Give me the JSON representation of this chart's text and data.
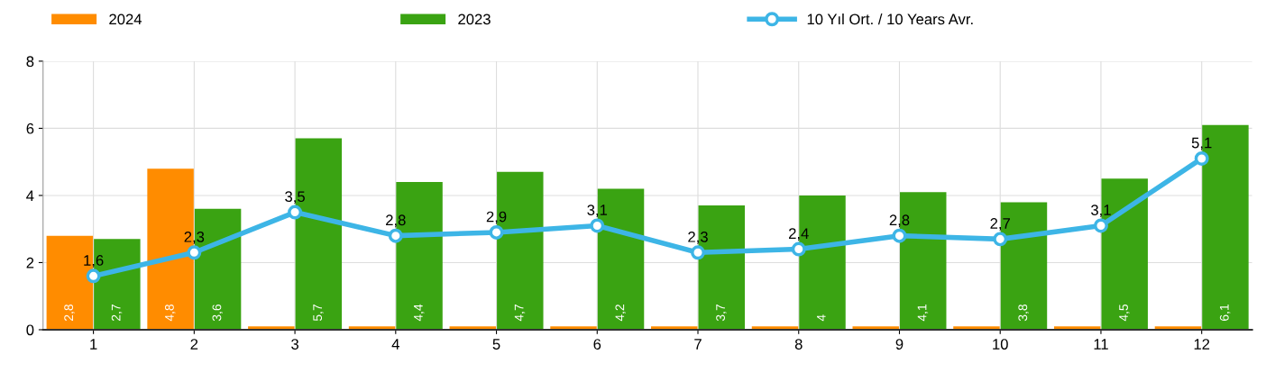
{
  "chart_data": {
    "type": "bar",
    "categories": [
      "1",
      "2",
      "3",
      "4",
      "5",
      "6",
      "7",
      "8",
      "9",
      "10",
      "11",
      "12"
    ],
    "series": [
      {
        "name": "2024",
        "color": "#ff8c00",
        "values": [
          2.8,
          4.8,
          0.1,
          0.1,
          0.1,
          0.1,
          0.1,
          0.1,
          0.1,
          0.1,
          0.1,
          0.1
        ],
        "value_labels": [
          "2,8",
          "4,8",
          null,
          null,
          null,
          null,
          null,
          null,
          null,
          null,
          null,
          null
        ]
      },
      {
        "name": "2023",
        "color": "#3aa312",
        "values": [
          2.7,
          3.6,
          5.7,
          4.4,
          4.7,
          4.2,
          3.7,
          4,
          4.1,
          3.8,
          4.5,
          6.1
        ],
        "value_labels": [
          "2,7",
          "3,6",
          "5,7",
          "4,4",
          "4,7",
          "4,2",
          "3,7",
          "4",
          "4,1",
          "3,8",
          "4,5",
          "6,1"
        ]
      },
      {
        "name": "10 Yıl Ort. / 10 Years Avr.",
        "type": "line",
        "color": "#3db5e6",
        "marker": "circle",
        "values": [
          1.6,
          2.3,
          3.5,
          2.8,
          2.9,
          3.1,
          2.3,
          2.4,
          2.8,
          2.7,
          3.1,
          5.1
        ],
        "value_labels": [
          "1,6",
          "2,3",
          "3,5",
          "2,8",
          "2,9",
          "3,1",
          "2,3",
          "2,4",
          "2,8",
          "2,7",
          "3,1",
          "5,1"
        ]
      }
    ],
    "ylim": [
      0,
      8
    ],
    "yticks": [
      0,
      2,
      4,
      6,
      8
    ],
    "grid": true,
    "legend": "top"
  }
}
